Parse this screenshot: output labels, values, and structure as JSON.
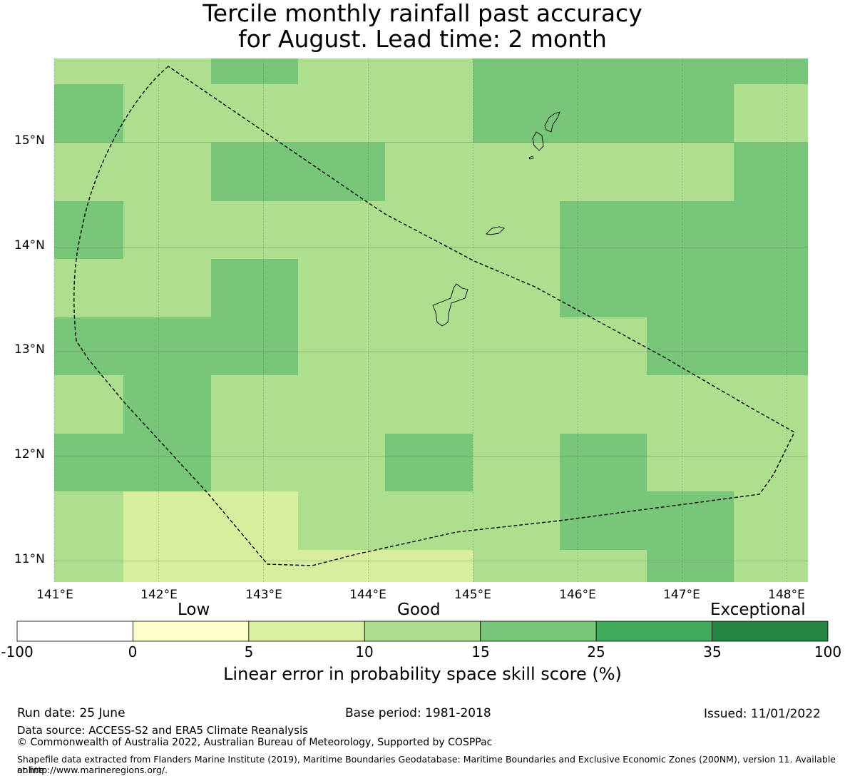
{
  "title": {
    "line1": "Tercile monthly rainfall past accuracy",
    "line2": "for August. Lead time: 2 month"
  },
  "map": {
    "lon_range": [
      141.0,
      148.2
    ],
    "lat_range": [
      10.8,
      15.8
    ],
    "lon_labels": [
      "141°E",
      "142°E",
      "143°E",
      "144°E",
      "145°E",
      "146°E",
      "147°E",
      "148°E"
    ],
    "lat_labels": [
      "11°N",
      "12°N",
      "13°N",
      "14°N",
      "15°N"
    ],
    "colors": {
      "c5_10": "#d7ee9e",
      "c10_15": "#addf8e",
      "c15_25": "#78c679"
    }
  },
  "colorbar": {
    "category_labels": {
      "low": "Low",
      "good": "Good",
      "exceptional": "Exceptional"
    },
    "ticks": [
      "-100",
      "0",
      "5",
      "10",
      "15",
      "25",
      "35",
      "100"
    ],
    "colors": [
      "#ffffff",
      "#ffffcc",
      "#d9f0a3",
      "#addd8e",
      "#78c679",
      "#41ab5d",
      "#238443"
    ],
    "title": "Linear error in probability space skill score (%)"
  },
  "footer": {
    "run_date": "Run date: 25 June",
    "base_period": "Base period: 1981-2018",
    "issued": "Issued: 11/01/2022",
    "data_source": "Data source: ACCESS-S2 and ERA5 Climate Reanalysis",
    "copyright": "© Commonwealth of Australia 2022, Australian Bureau of Meteorology, Supported by COSPPac",
    "shapefile_line1": "Shapefile data extracted from Flanders Marine Institute (2019), Maritime Boundaries Geodatabase: Maritime Boundaries and Exclusive Economic Zones (200NM), version 11. Available online",
    "shapefile_line2": "at http://www.marineregions.org/."
  }
}
